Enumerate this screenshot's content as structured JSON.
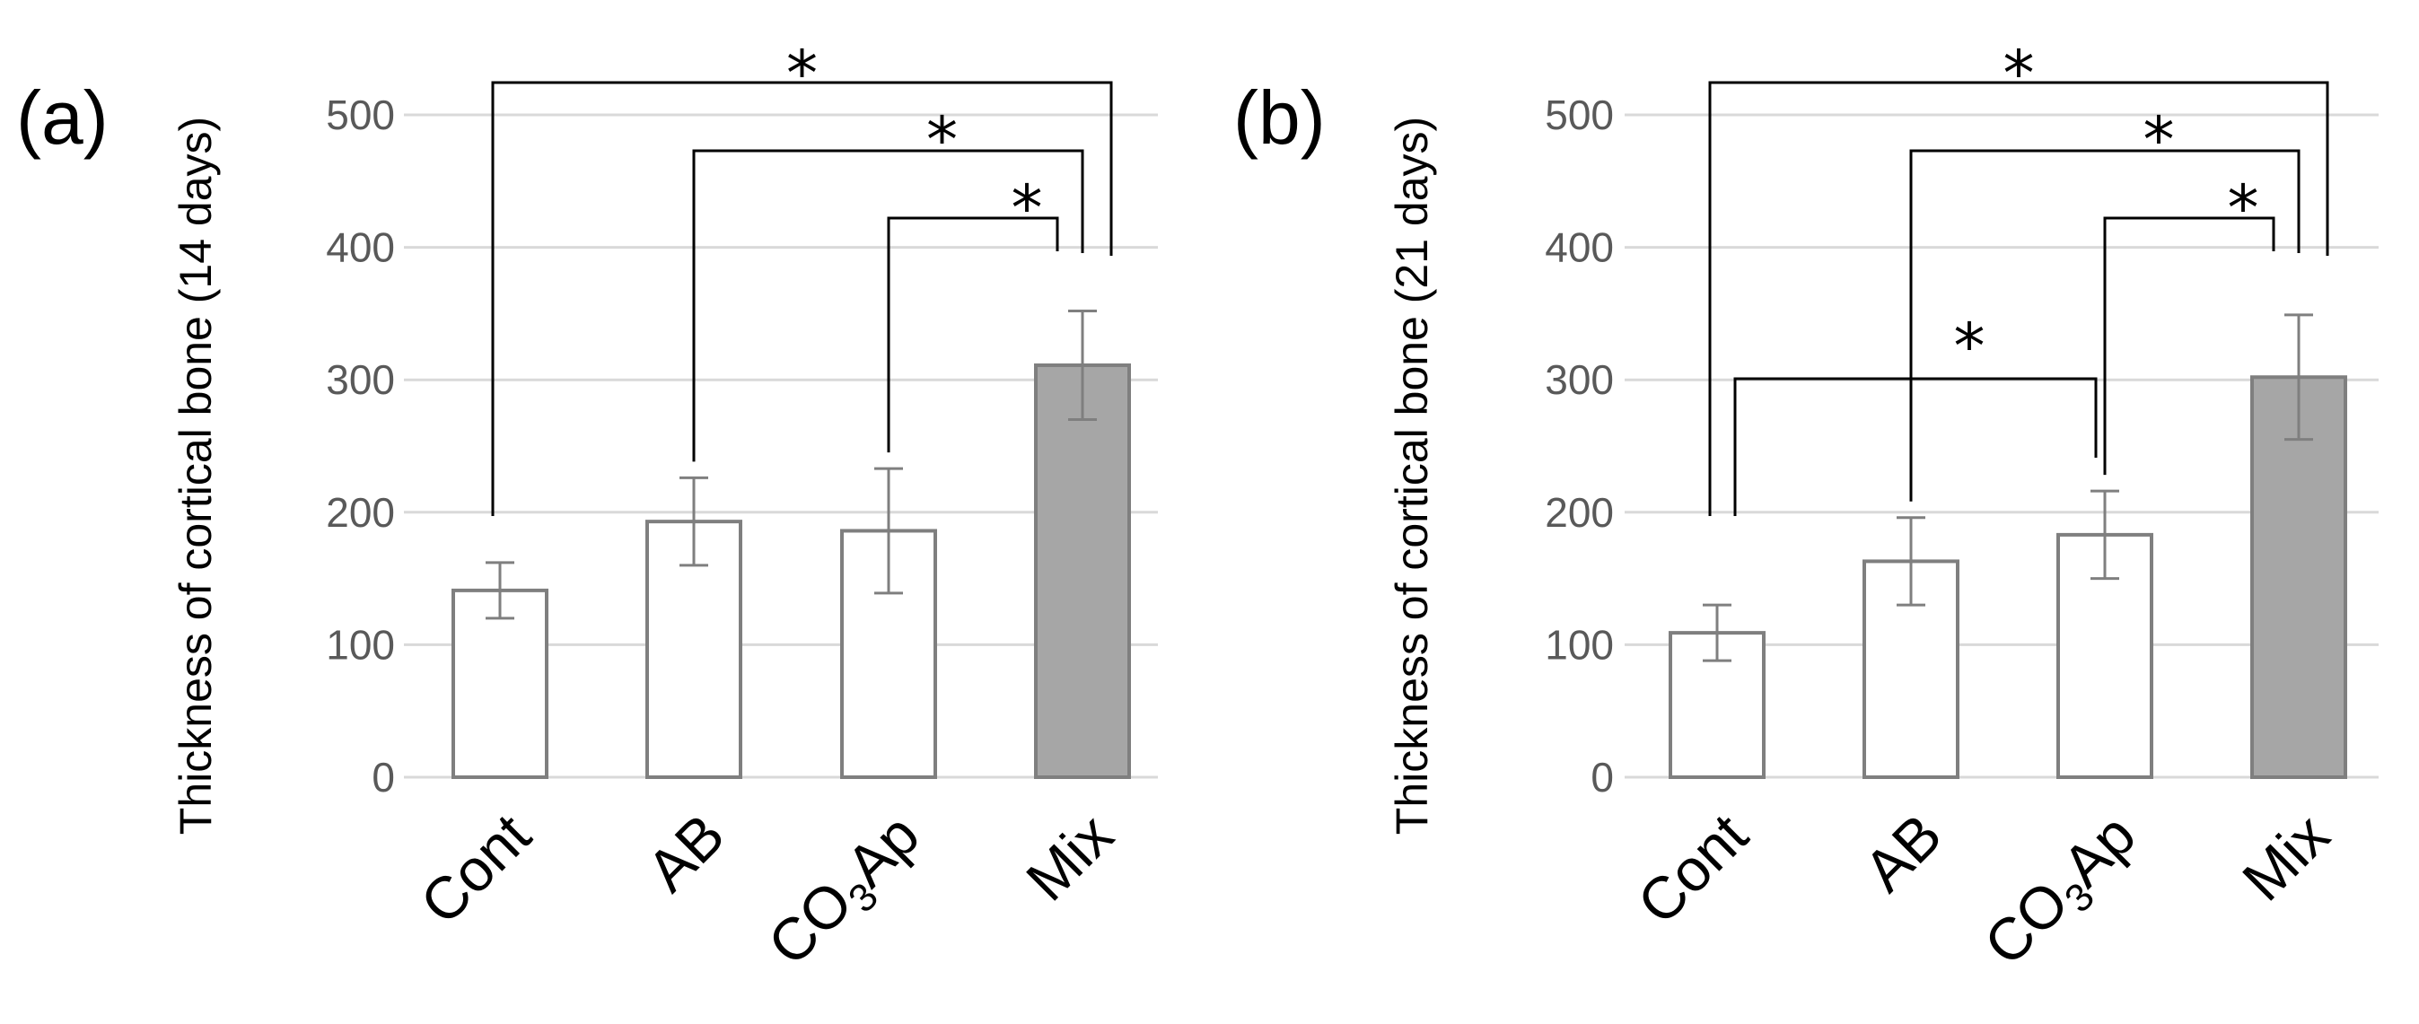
{
  "chart_data": [
    {
      "type": "bar",
      "panel_label": "(a)",
      "ylabel": "Thickness of  cortical bone (14 days)",
      "ylim": [
        0,
        500
      ],
      "yticks": [
        "0",
        "100",
        "200",
        "300",
        "400",
        "500"
      ],
      "categories": [
        "Cont",
        "AB",
        "CO3Ap",
        "Mix"
      ],
      "values": [
        141,
        193,
        186,
        311
      ],
      "errors": [
        21,
        33,
        47,
        41
      ],
      "bar_colors": [
        "#ffffff",
        "#ffffff",
        "#ffffff",
        "#a6a6a6"
      ],
      "grid": true,
      "significance": [
        {
          "from": "Cont",
          "to": "Mix",
          "label": "*"
        },
        {
          "from": "AB",
          "to": "Mix",
          "label": "*"
        },
        {
          "from": "CO3Ap",
          "to": "Mix",
          "label": "*"
        }
      ]
    },
    {
      "type": "bar",
      "panel_label": "(b)",
      "ylabel": "Thickness of cortical bone (21 days)",
      "ylim": [
        0,
        500
      ],
      "yticks": [
        "0",
        "100",
        "200",
        "300",
        "400",
        "500"
      ],
      "categories": [
        "Cont",
        "AB",
        "CO3Ap",
        "Mix"
      ],
      "values": [
        109,
        163,
        183,
        302
      ],
      "errors": [
        21,
        33,
        33,
        47
      ],
      "bar_colors": [
        "#ffffff",
        "#ffffff",
        "#ffffff",
        "#a6a6a6"
      ],
      "grid": true,
      "significance": [
        {
          "from": "Cont",
          "to": "Mix",
          "label": "*"
        },
        {
          "from": "AB",
          "to": "Mix",
          "label": "*"
        },
        {
          "from": "CO3Ap",
          "to": "Mix",
          "label": "*"
        },
        {
          "from": "Cont",
          "to": "CO3Ap",
          "label": "*"
        }
      ]
    }
  ]
}
